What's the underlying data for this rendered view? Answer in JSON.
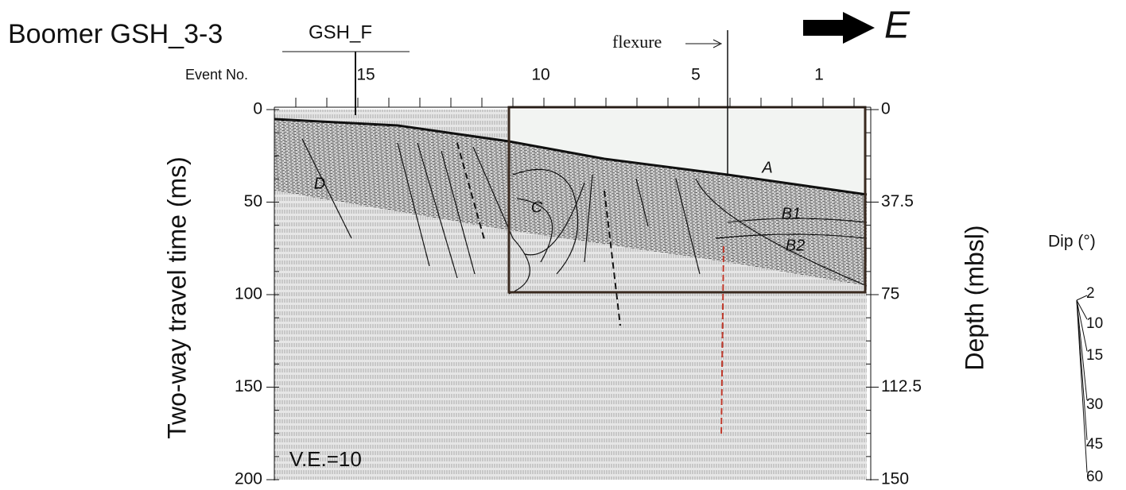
{
  "title": "Boomer GSH_3-3",
  "fault_label": "GSH_F",
  "direction": "E",
  "flexure_label": "flexure",
  "event_axis": {
    "label": "Event No.",
    "ticks": [
      15,
      10,
      5,
      1
    ]
  },
  "left_axis": {
    "label": "Two-way travel time (ms)",
    "ticks": [
      0,
      50,
      100,
      150,
      200
    ]
  },
  "right_axis": {
    "label": "Depth (mbsl)",
    "ticks": [
      0,
      37.5,
      75,
      112.5,
      150
    ]
  },
  "units": [
    "A",
    "B1",
    "B2",
    "C",
    "D"
  ],
  "ve": "V.E.=10",
  "dip_scale": {
    "label": "Dip (°)",
    "ticks": [
      2,
      10,
      15,
      30,
      45,
      60
    ]
  }
}
